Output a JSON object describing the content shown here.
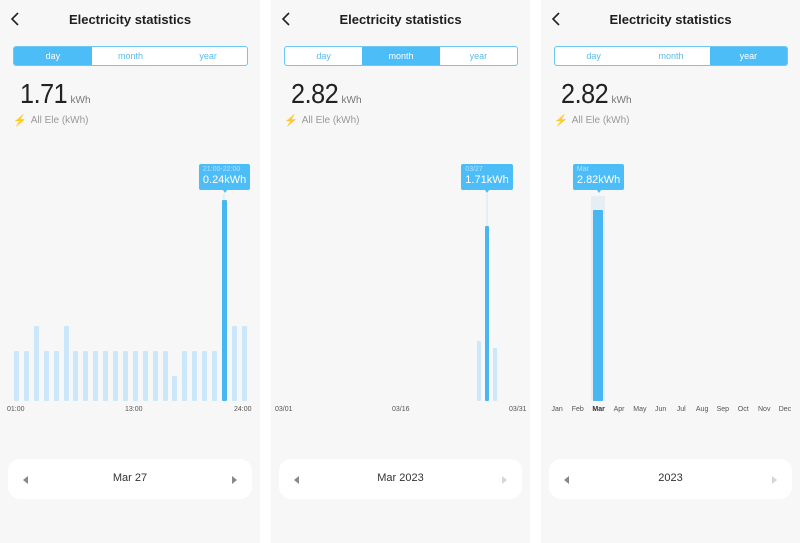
{
  "accent": "#4dbdf7",
  "panels": [
    {
      "title": "Electricity statistics",
      "tabs": [
        "day",
        "month",
        "year"
      ],
      "active_tab": 0,
      "total_value": "1.71",
      "total_unit": "kWh",
      "subtitle": "All Ele (kWh)",
      "tooltip_label": "21:00-22:00",
      "tooltip_value": "0.24kWh",
      "nav_label": "Mar 27",
      "next_enabled": true
    },
    {
      "title": "Electricity statistics",
      "tabs": [
        "day",
        "month",
        "year"
      ],
      "active_tab": 1,
      "total_value": "2.82",
      "total_unit": "kWh",
      "subtitle": "All Ele (kWh)",
      "tooltip_label": "03/27",
      "tooltip_value": "1.71kWh",
      "nav_label": "Mar 2023",
      "next_enabled": false
    },
    {
      "title": "Electricity statistics",
      "tabs": [
        "day",
        "month",
        "year"
      ],
      "active_tab": 2,
      "total_value": "2.82",
      "total_unit": "kWh",
      "subtitle": "All Ele (kWh)",
      "tooltip_label": "Mar",
      "tooltip_value": "2.82kWh",
      "nav_label": "2023",
      "next_enabled": false
    }
  ],
  "chart_data": [
    {
      "type": "bar",
      "title": "day",
      "x_labels": [
        "01:00",
        "13:00",
        "24:00"
      ],
      "x": [
        1,
        2,
        3,
        4,
        5,
        6,
        7,
        8,
        9,
        10,
        11,
        12,
        13,
        14,
        15,
        16,
        17,
        18,
        19,
        20,
        21,
        22,
        23,
        24
      ],
      "values": [
        0.06,
        0.06,
        0.09,
        0.06,
        0.06,
        0.09,
        0.06,
        0.06,
        0.06,
        0.06,
        0.06,
        0.06,
        0.06,
        0.06,
        0.06,
        0.06,
        0.03,
        0.06,
        0.06,
        0.06,
        0.06,
        0.24,
        0.09,
        0.09
      ],
      "selected_index": 21,
      "ylim": [
        0,
        0.24
      ],
      "unit": "kWh"
    },
    {
      "type": "bar",
      "title": "month",
      "x_labels": [
        "03/01",
        "03/16",
        "03/31"
      ],
      "x_range": [
        1,
        31
      ],
      "points": [
        {
          "day": 26,
          "value": 0.59
        },
        {
          "day": 27,
          "value": 1.71
        },
        {
          "day": 28,
          "value": 0.52
        }
      ],
      "selected_day": 27,
      "ylim": [
        0,
        1.71
      ],
      "unit": "kWh"
    },
    {
      "type": "bar",
      "title": "year",
      "categories": [
        "Jan",
        "Feb",
        "Mar",
        "Apr",
        "May",
        "Jun",
        "Jul",
        "Aug",
        "Sep",
        "Oct",
        "Nov",
        "Dec"
      ],
      "values": [
        0,
        0,
        2.82,
        0,
        0,
        0,
        0,
        0,
        0,
        0,
        0,
        0
      ],
      "selected_index": 2,
      "ylim": [
        0,
        2.82
      ],
      "unit": "kWh"
    }
  ]
}
